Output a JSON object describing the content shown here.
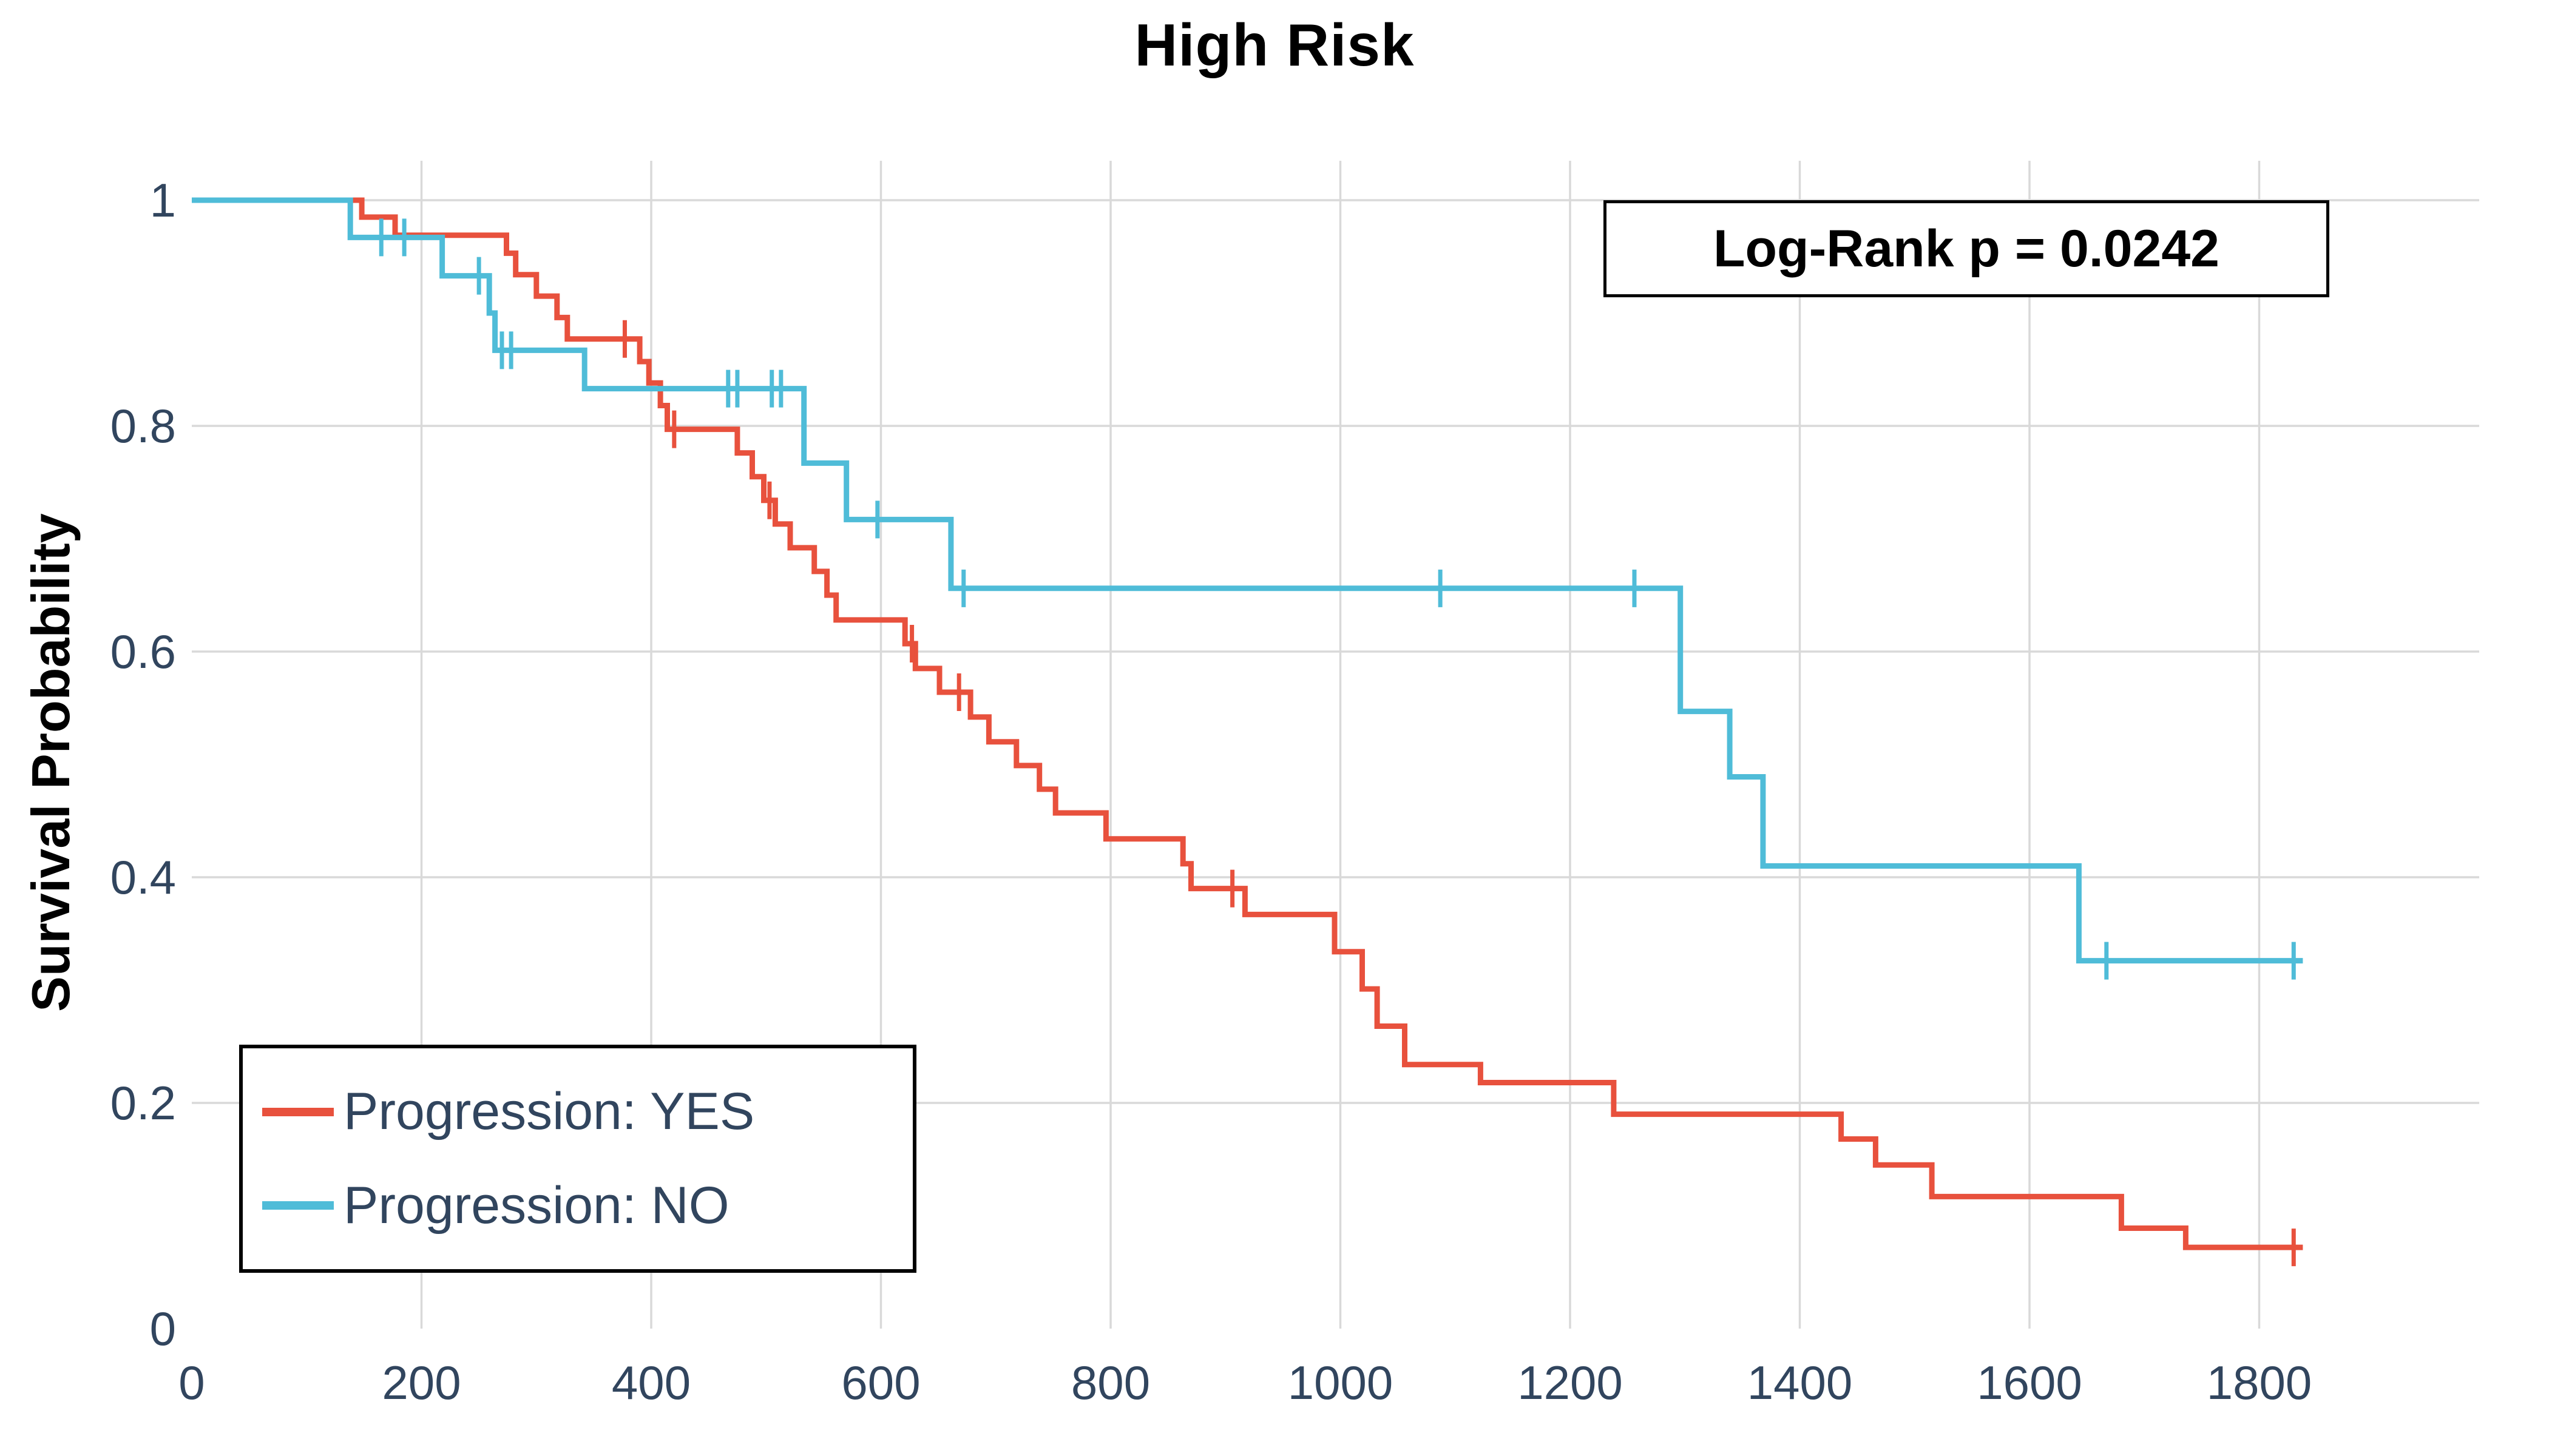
{
  "title": "High Risk",
  "annotation": {
    "text": "Log-Rank p = 0.0242"
  },
  "legend": {
    "items": [
      {
        "label": "Progression: YES",
        "color": "#E8513D"
      },
      {
        "label": "Progression: NO",
        "color": "#4FBCD8"
      }
    ]
  },
  "colors": {
    "curve_yes": "#E8513D",
    "curve_no": "#4FBCD8",
    "tick_text": "#31455E",
    "grid": "#D9D9D9",
    "title_text": "#000000",
    "background": "#FFFFFF"
  },
  "chart_data": {
    "type": "line",
    "subtype": "kaplan-meier-step",
    "title": "High Risk",
    "xlabel": "",
    "ylabel": "Survival Probability",
    "xlim": [
      0,
      1990
    ],
    "ylim": [
      0,
      1
    ],
    "grid": true,
    "legend_position": "lower left",
    "x_ticks": {
      "values": [
        0,
        200,
        400,
        600,
        800,
        1000,
        1200,
        1400,
        1600,
        1800
      ],
      "labels": [
        "0",
        "200",
        "400",
        "600",
        "800",
        "1000",
        "1200",
        "1400",
        "1600",
        "1800"
      ]
    },
    "y_ticks": {
      "values": [
        1,
        0.8,
        0.6,
        0.4,
        0.2,
        0
      ],
      "labels": [
        "1",
        "0.8",
        "0.6",
        "0.4",
        "0.2",
        "0"
      ]
    },
    "annotation": "Log-Rank p = 0.0242",
    "series": [
      {
        "name": "Progression: YES",
        "color": "#E8513D",
        "points": [
          [
            0,
            1
          ],
          [
            148,
            0.985
          ],
          [
            177,
            0.969
          ],
          [
            274,
            0.953
          ],
          [
            282,
            0.934
          ],
          [
            300,
            0.915
          ],
          [
            318,
            0.896
          ],
          [
            327,
            0.877
          ],
          [
            390,
            0.857
          ],
          [
            398,
            0.838
          ],
          [
            408,
            0.818
          ],
          [
            414,
            0.797
          ],
          [
            475,
            0.776
          ],
          [
            488,
            0.755
          ],
          [
            498,
            0.734
          ],
          [
            508,
            0.713
          ],
          [
            521,
            0.692
          ],
          [
            542,
            0.671
          ],
          [
            553,
            0.65
          ],
          [
            561,
            0.628
          ],
          [
            621,
            0.607
          ],
          [
            630,
            0.585
          ],
          [
            651,
            0.564
          ],
          [
            678,
            0.542
          ],
          [
            694,
            0.52
          ],
          [
            718,
            0.499
          ],
          [
            738,
            0.478
          ],
          [
            752,
            0.457
          ],
          [
            796,
            0.434
          ],
          [
            863,
            0.412
          ],
          [
            870,
            0.39
          ],
          [
            917,
            0.367
          ],
          [
            995,
            0.334
          ],
          [
            1019,
            0.301
          ],
          [
            1032,
            0.268
          ],
          [
            1056,
            0.234
          ],
          [
            1122,
            0.218
          ],
          [
            1238,
            0.19
          ],
          [
            1436,
            0.168
          ],
          [
            1466,
            0.145
          ],
          [
            1515,
            0.117
          ],
          [
            1680,
            0.089
          ],
          [
            1736,
            0.072
          ],
          [
            1838,
            0.072
          ]
        ],
        "censor_marks": [
          [
            377,
            0.877
          ],
          [
            420,
            0.797
          ],
          [
            503,
            0.734
          ],
          [
            627,
            0.607
          ],
          [
            668,
            0.564
          ],
          [
            906,
            0.39
          ],
          [
            1830,
            0.072
          ]
        ]
      },
      {
        "name": "Progression: NO",
        "color": "#4FBCD8",
        "points": [
          [
            0,
            1
          ],
          [
            138,
            0.967
          ],
          [
            218,
            0.933
          ],
          [
            259,
            0.9
          ],
          [
            264,
            0.867
          ],
          [
            342,
            0.833
          ],
          [
            533,
            0.767
          ],
          [
            570,
            0.717
          ],
          [
            661,
            0.656
          ],
          [
            1296,
            0.547
          ],
          [
            1339,
            0.489
          ],
          [
            1368,
            0.41
          ],
          [
            1643,
            0.326
          ],
          [
            1838,
            0.326
          ]
        ],
        "censor_marks": [
          [
            165,
            0.967
          ],
          [
            185,
            0.967
          ],
          [
            250,
            0.933
          ],
          [
            270,
            0.867
          ],
          [
            278,
            0.867
          ],
          [
            467,
            0.833
          ],
          [
            475,
            0.833
          ],
          [
            505,
            0.833
          ],
          [
            513,
            0.833
          ],
          [
            597,
            0.717
          ],
          [
            672,
            0.656
          ],
          [
            1087,
            0.656
          ],
          [
            1256,
            0.656
          ],
          [
            1667,
            0.326
          ],
          [
            1830,
            0.326
          ]
        ]
      }
    ]
  }
}
